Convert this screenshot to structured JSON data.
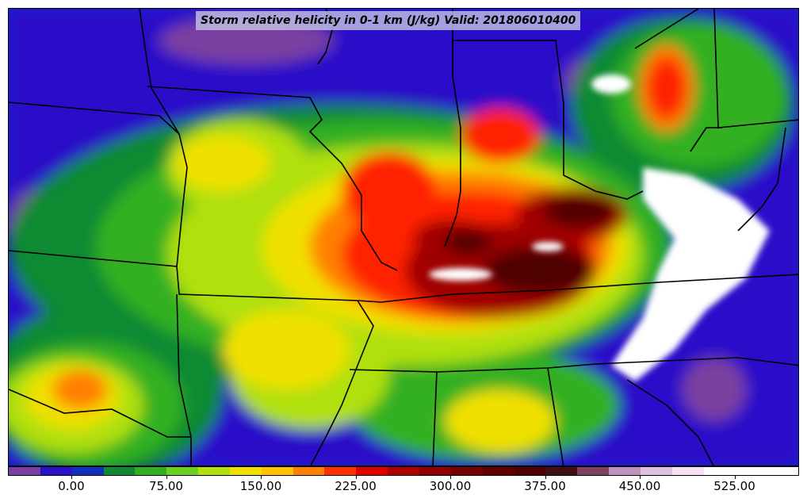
{
  "title": "Storm relative helicity in 0-1 km (J/kg) Valid: 201806010400",
  "colorbar": {
    "colors": [
      "#7a3fa0",
      "#2a10c8",
      "#1030c0",
      "#108a30",
      "#30b020",
      "#6ad020",
      "#b0e010",
      "#f0e000",
      "#ffc000",
      "#ff8000",
      "#ff3000",
      "#e00000",
      "#b00000",
      "#900000",
      "#780000",
      "#600000",
      "#500000",
      "#401010",
      "#804060",
      "#c090c0",
      "#e0c0e0",
      "#f5e0f5",
      "#ffffff",
      "#ffffff",
      "#ffffff"
    ],
    "tick_labels": [
      "0.00",
      "75.00",
      "150.00",
      "225.00",
      "300.00",
      "375.00",
      "450.00",
      "525.00"
    ]
  },
  "field_colors": {
    "background": "#1a1acc",
    "low_purple": "#7a3fa0",
    "blue": "#2a10c8",
    "dark_green": "#108a30",
    "green": "#30b020",
    "lime": "#b0e010",
    "yellow": "#f0e000",
    "orange": "#ff8000",
    "red": "#ff2000",
    "dark_red": "#a00000",
    "maroon": "#500000",
    "white": "#ffffff"
  }
}
